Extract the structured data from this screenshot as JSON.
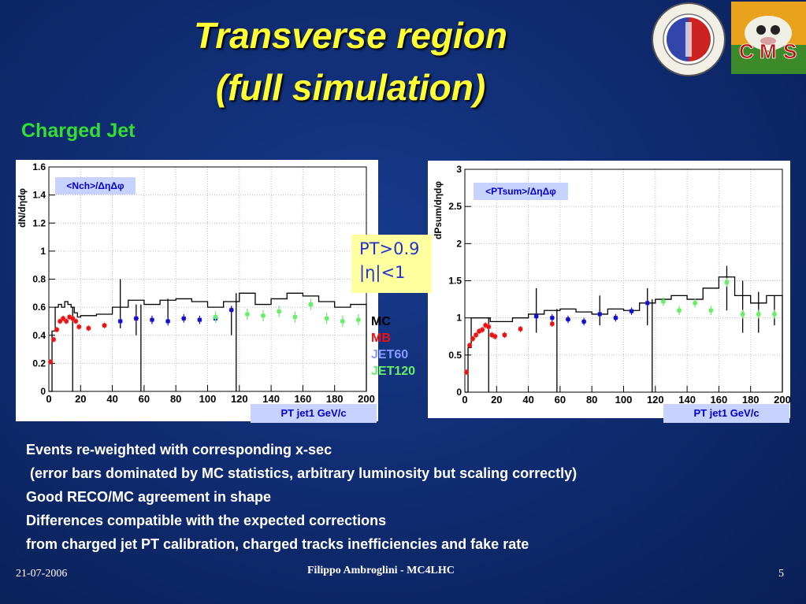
{
  "slide": {
    "title_line1": "Transverse region",
    "title_line2": "(full simulation)",
    "subtitle": "Charged Jet",
    "cut_line1": "PT>0.9",
    "cut_line2": "|η|<1",
    "legend": [
      {
        "label": "MC",
        "color": "#000000"
      },
      {
        "label": "MB",
        "color": "#ee1111"
      },
      {
        "label": "JET60",
        "color": "#8899ff"
      },
      {
        "label": "JET120",
        "color": "#66ee66"
      }
    ],
    "notes": [
      "Events re-weighted with corresponding x-sec",
      " (error bars dominated by MC statistics, arbitrary luminosity but scaling correctly)",
      "Good RECO/MC agreement in shape",
      "Differences compatible with the expected corrections",
      "from charged jet PT calibration, charged tracks inefficiencies and fake rate"
    ],
    "footer_date": "21-07-2006",
    "footer_center": "Filippo Ambroglini - MC4LHC",
    "footer_page": "5",
    "colors": {
      "title": "#ffff33",
      "subtitle": "#33dd33",
      "mc": "#000000",
      "mb": "#ee1111",
      "jet60": "#1111cc",
      "jet120": "#66ee66"
    }
  },
  "chart_data": [
    {
      "type": "scatter",
      "label_box": "<Nch>/ΔηΔφ",
      "ylabel": "dN/dηdφ",
      "xlabel": "PT jet1 GeV/c",
      "xlim": [
        0,
        200
      ],
      "ylim": [
        0,
        1.6
      ],
      "xticks": [
        0,
        20,
        40,
        60,
        80,
        100,
        120,
        140,
        160,
        180,
        200
      ],
      "yticks": [
        0,
        0.2,
        0.4,
        0.6,
        0.8,
        1,
        1.2,
        1.4,
        1.6
      ],
      "ytick_labels": [
        "0",
        "0.2",
        "0.4",
        "0.6",
        "0.8",
        "1",
        "1.2",
        "1.4",
        "1.6"
      ],
      "mc_histogram": {
        "edges": [
          0,
          2,
          4,
          6,
          8,
          10,
          12,
          14,
          16,
          18,
          20,
          30,
          40,
          50,
          60,
          70,
          80,
          90,
          100,
          110,
          120,
          130,
          140,
          150,
          160,
          170,
          180,
          190,
          200
        ],
        "values": [
          0,
          0.43,
          0.6,
          0.62,
          0.6,
          0.64,
          0.62,
          0.6,
          0.56,
          0.53,
          0.54,
          0.55,
          0.6,
          0.65,
          0.62,
          0.65,
          0.66,
          0.64,
          0.6,
          0.64,
          0.7,
          0.62,
          0.66,
          0.7,
          0.68,
          0.64,
          0.6,
          0.62
        ],
        "errors": [
          [
            45,
            0.45,
            0.8
          ],
          [
            55,
            0.4,
            0.62
          ],
          [
            75,
            0.5,
            0.66
          ],
          [
            115,
            0.4,
            0.6
          ]
        ],
        "long_errors": [
          [
            15,
            0,
            0.6
          ],
          [
            58,
            0,
            0.62
          ],
          [
            118,
            0,
            0.7
          ]
        ]
      },
      "series": [
        {
          "name": "MB",
          "points": [
            [
              1,
              0.21
            ],
            [
              3,
              0.37
            ],
            [
              5,
              0.44
            ],
            [
              7,
              0.5
            ],
            [
              9,
              0.52
            ],
            [
              11,
              0.5
            ],
            [
              13,
              0.53
            ],
            [
              15,
              0.52
            ],
            [
              17,
              0.5
            ],
            [
              19,
              0.46
            ],
            [
              25,
              0.45
            ],
            [
              35,
              0.47
            ],
            [
              55,
              0.52
            ]
          ],
          "err": 0.02
        },
        {
          "name": "JET60",
          "points": [
            [
              45,
              0.5
            ],
            [
              55,
              0.52
            ],
            [
              65,
              0.51
            ],
            [
              75,
              0.5
            ],
            [
              85,
              0.52
            ],
            [
              95,
              0.51
            ],
            [
              105,
              0.52
            ],
            [
              115,
              0.58
            ]
          ],
          "err": 0.03
        },
        {
          "name": "JET120",
          "points": [
            [
              105,
              0.53
            ],
            [
              125,
              0.55
            ],
            [
              135,
              0.54
            ],
            [
              145,
              0.57
            ],
            [
              155,
              0.53
            ],
            [
              165,
              0.62
            ],
            [
              175,
              0.52
            ],
            [
              185,
              0.5
            ],
            [
              195,
              0.51
            ]
          ],
          "err": 0.04
        }
      ]
    },
    {
      "type": "scatter",
      "label_box": "<PTsum>/ΔηΔφ",
      "ylabel": "dPsum/dηdφ",
      "xlabel": "PT jet1 GeV/c",
      "xlim": [
        0,
        200
      ],
      "ylim": [
        0,
        3
      ],
      "xticks": [
        0,
        20,
        40,
        60,
        80,
        100,
        120,
        140,
        160,
        180,
        200
      ],
      "yticks": [
        0,
        0.5,
        1,
        1.5,
        2,
        2.5,
        3
      ],
      "ytick_labels": [
        "0",
        "0.5",
        "1",
        "1.5",
        "2",
        "2.5",
        "3"
      ],
      "mc_histogram": {
        "edges": [
          0,
          2,
          4,
          6,
          8,
          10,
          12,
          14,
          16,
          18,
          20,
          30,
          40,
          50,
          60,
          70,
          80,
          90,
          100,
          110,
          120,
          130,
          140,
          150,
          160,
          170,
          180,
          190,
          200
        ],
        "values": [
          0,
          0.6,
          1.0,
          1.0,
          1.0,
          1.0,
          1.0,
          1.0,
          0.95,
          0.95,
          0.95,
          1.0,
          1.05,
          1.1,
          1.12,
          1.08,
          1.05,
          1.12,
          1.1,
          1.2,
          1.25,
          1.3,
          1.25,
          1.4,
          1.55,
          1.3,
          1.2,
          1.3
        ],
        "errors": [
          [
            45,
            0.8,
            1.4
          ],
          [
            85,
            0.9,
            1.3
          ],
          [
            115,
            0.9,
            1.4
          ],
          [
            165,
            1.1,
            1.7
          ],
          [
            175,
            0.8,
            1.5
          ],
          [
            185,
            0.8,
            1.35
          ],
          [
            195,
            0.9,
            1.3
          ]
        ],
        "long_errors": [
          [
            15,
            0,
            1.0
          ],
          [
            58,
            0,
            1.12
          ],
          [
            118,
            0,
            1.25
          ]
        ]
      },
      "series": [
        {
          "name": "MB",
          "points": [
            [
              1,
              0.27
            ],
            [
              3,
              0.63
            ],
            [
              5,
              0.72
            ],
            [
              7,
              0.77
            ],
            [
              9,
              0.82
            ],
            [
              11,
              0.84
            ],
            [
              13,
              0.9
            ],
            [
              15,
              0.88
            ],
            [
              17,
              0.77
            ],
            [
              19,
              0.75
            ],
            [
              25,
              0.77
            ],
            [
              35,
              0.85
            ],
            [
              55,
              0.92
            ]
          ],
          "err": 0.04
        },
        {
          "name": "JET60",
          "points": [
            [
              45,
              1.02
            ],
            [
              55,
              1.0
            ],
            [
              65,
              0.98
            ],
            [
              75,
              0.95
            ],
            [
              85,
              1.05
            ],
            [
              95,
              1.0
            ],
            [
              105,
              1.09
            ],
            [
              115,
              1.2
            ]
          ],
          "err": 0.05
        },
        {
          "name": "JET120",
          "points": [
            [
              125,
              1.22
            ],
            [
              135,
              1.1
            ],
            [
              145,
              1.2
            ],
            [
              155,
              1.1
            ],
            [
              165,
              1.48
            ],
            [
              175,
              1.05
            ],
            [
              185,
              1.05
            ],
            [
              195,
              1.05
            ]
          ],
          "err": 0.06
        }
      ]
    }
  ]
}
